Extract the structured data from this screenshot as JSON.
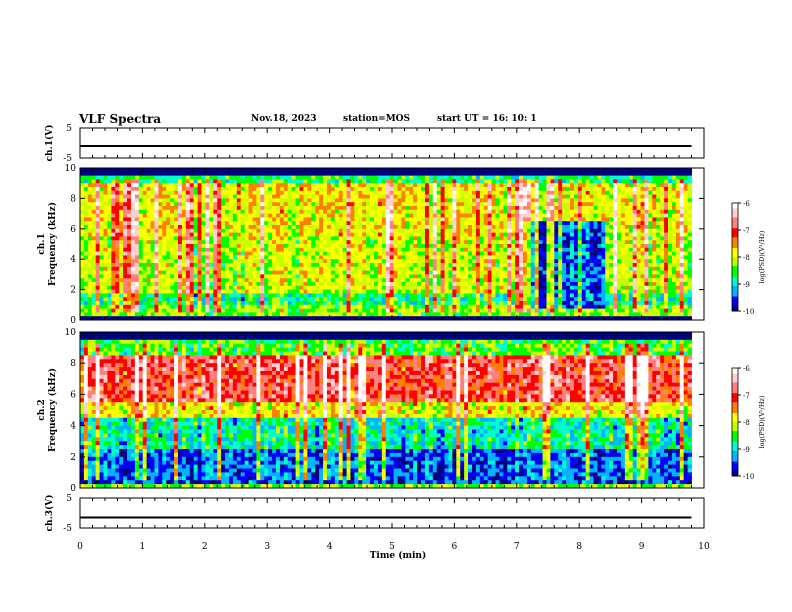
{
  "header": {
    "title": "VLF Spectra",
    "date": "Nov.18, 2023",
    "station": "station=MOS",
    "start": "start  UT =   16: 10: 1"
  },
  "colormap": [
    "#000080",
    "#0000ff",
    "#00b4ff",
    "#00ffc8",
    "#00ff00",
    "#c8ff00",
    "#ffff00",
    "#ff8000",
    "#ff0000",
    "#ff8080",
    "#ffd0d0",
    "#ffffff"
  ],
  "chart_data": [
    {
      "id": "ch1-voltage",
      "type": "line",
      "ylabel": "ch.1(V)",
      "ylim": [
        -5,
        5
      ],
      "yticks": [
        "5",
        "-5"
      ],
      "xlim": [
        0,
        10
      ],
      "series": [
        {
          "x": [
            0,
            9.8
          ],
          "y": [
            -1.0,
            -1.0
          ]
        }
      ]
    },
    {
      "id": "ch1-spectrogram",
      "type": "heatmap",
      "ylabel": "ch.1\nFrequency (kHz)",
      "ylim": [
        0,
        10
      ],
      "yticks": [
        "0",
        "2",
        "4",
        "6",
        "8",
        "10"
      ],
      "xlim": [
        0,
        10
      ],
      "data_x_end": 9.8,
      "colorbar": {
        "label": "log(PSD)(V²/Hz)",
        "range": [
          -10,
          -6
        ],
        "ticks": [
          "-6",
          "-7",
          "-8",
          "-9",
          "-10"
        ]
      },
      "bands": [
        {
          "f_lo": 0,
          "f_hi": 0.25,
          "level": -10.5
        },
        {
          "f_lo": 0.25,
          "f_hi": 1.0,
          "level": -8.3
        },
        {
          "f_lo": 1.0,
          "f_hi": 1.8,
          "level": -8.8
        },
        {
          "f_lo": 1.8,
          "f_hi": 5.5,
          "level": -8.1
        },
        {
          "f_lo": 5.5,
          "f_hi": 9.0,
          "level": -7.9
        },
        {
          "f_lo": 9.0,
          "f_hi": 9.5,
          "level": -8.7
        },
        {
          "f_lo": 9.5,
          "f_hi": 10,
          "level": -10.5
        }
      ],
      "quiet_region": {
        "t_lo": 7.1,
        "t_hi": 8.4,
        "f_lo": 0.8,
        "f_hi": 6.5,
        "level": -9.5
      }
    },
    {
      "id": "ch2-spectrogram",
      "type": "heatmap",
      "ylabel": "ch.2\nFrequency (kHz)",
      "ylim": [
        0,
        10
      ],
      "yticks": [
        "0",
        "2",
        "4",
        "6",
        "8",
        "10"
      ],
      "xlim": [
        0,
        10
      ],
      "data_x_end": 9.8,
      "colorbar": {
        "label": "log(PSD)(V²/Hz)",
        "range": [
          -10,
          -6
        ],
        "ticks": [
          "-6",
          "-7",
          "-8",
          "-9",
          "-10"
        ]
      },
      "bands": [
        {
          "f_lo": 0,
          "f_hi": 0.3,
          "level": -8.3
        },
        {
          "f_lo": 0.3,
          "f_hi": 2.5,
          "level": -9.5
        },
        {
          "f_lo": 2.5,
          "f_hi": 4.5,
          "level": -8.9
        },
        {
          "f_lo": 4.5,
          "f_hi": 5.5,
          "level": -7.9
        },
        {
          "f_lo": 5.5,
          "f_hi": 8.5,
          "level": -7.0
        },
        {
          "f_lo": 8.5,
          "f_hi": 9.4,
          "level": -8.5
        },
        {
          "f_lo": 9.4,
          "f_hi": 10,
          "level": -10.3
        }
      ]
    },
    {
      "id": "ch3-voltage",
      "type": "line",
      "ylabel": "ch.3(V)",
      "ylim": [
        -5,
        5
      ],
      "yticks": [
        "5",
        "-5"
      ],
      "xlim": [
        0,
        10
      ],
      "xlabel": "Time (min)",
      "xticks": [
        "0",
        "1",
        "2",
        "3",
        "4",
        "5",
        "6",
        "7",
        "8",
        "9",
        "10"
      ],
      "series": [
        {
          "x": [
            0,
            9.8
          ],
          "y": [
            -1.5,
            -1.5
          ]
        }
      ]
    }
  ]
}
